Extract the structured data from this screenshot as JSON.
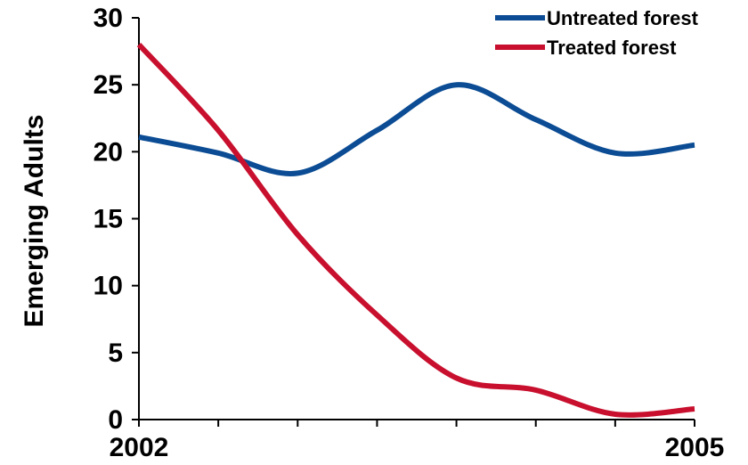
{
  "chart_data": {
    "type": "line",
    "title": "",
    "xlabel": "",
    "ylabel": "Emerging Adults",
    "ylim": [
      0,
      30
    ],
    "yticks": [
      "0",
      "5",
      "10",
      "15",
      "20",
      "25",
      "30"
    ],
    "xtick_labels": [
      "2002",
      "2005"
    ],
    "x_minor_ticks": 7,
    "grid": false,
    "legend_position": "top-right",
    "x": [
      0,
      1,
      2,
      3,
      4,
      5,
      6,
      7
    ],
    "series": [
      {
        "name": "Untreated forest",
        "color": "#0b4c94",
        "values": [
          21.1,
          19.9,
          18.4,
          21.6,
          25.0,
          22.4,
          19.9,
          20.5
        ]
      },
      {
        "name": "Treated forest",
        "color": "#c8102e",
        "values": [
          28.0,
          21.6,
          13.8,
          7.8,
          3.1,
          2.2,
          0.4,
          0.8
        ]
      }
    ]
  }
}
